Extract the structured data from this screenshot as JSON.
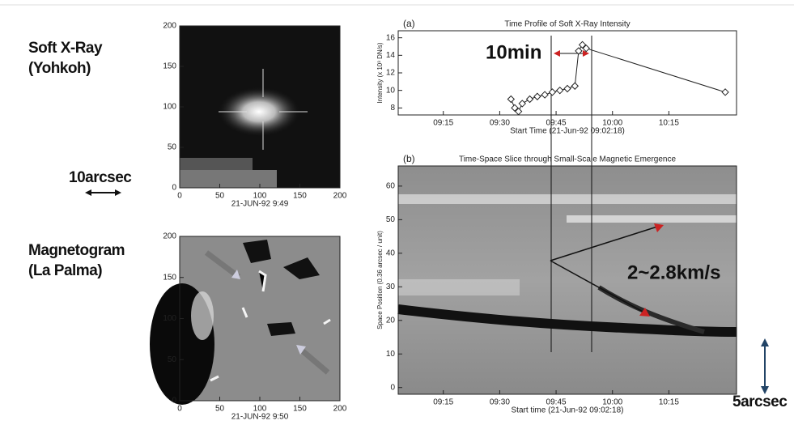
{
  "labels": {
    "soft_xray": "Soft X-Ray",
    "yohkoh": "(Yohkoh)",
    "scale_10": "10arcsec",
    "magnetogram": "Magnetogram",
    "la_palma": "(La Palma)",
    "min10": "10min",
    "speed": "2~2.8km/s",
    "scale_5": "5arcsec"
  },
  "chart_data": [
    {
      "type": "image",
      "xlabel": "21-JUN-92  9:49",
      "xlim": [
        0,
        200
      ],
      "ylim": [
        0,
        200
      ],
      "xticks": [
        0,
        50,
        100,
        150,
        200
      ],
      "yticks": [
        0,
        50,
        100,
        150,
        200
      ]
    },
    {
      "type": "image",
      "xlabel": "21-JUN-92  9:50",
      "xlim": [
        0,
        200
      ],
      "ylim": [
        0,
        200
      ],
      "xticks": [
        0,
        50,
        100,
        150,
        200
      ],
      "yticks": [
        0,
        50,
        100,
        150,
        200
      ]
    },
    {
      "type": "line",
      "panel": "(a)",
      "title": "Time Profile of Soft X-Ray Intensity",
      "xlabel": "Start Time (21-Jun-92 09:02:18)",
      "ylabel": "Intensity (x 10³ DN/s)",
      "x": [
        "09:33",
        "09:34",
        "09:35",
        "09:36",
        "09:38",
        "09:40",
        "09:42",
        "09:44",
        "09:46",
        "09:48",
        "09:50",
        "09:51",
        "09:52",
        "09:53",
        "10:30"
      ],
      "values": [
        9,
        8,
        7.6,
        8.5,
        9,
        9.3,
        9.5,
        9.8,
        10,
        10.2,
        10.5,
        14.5,
        15.2,
        14.8,
        9.8
      ],
      "color": "#222",
      "xlim": [
        "09:03",
        "10:33"
      ],
      "ylim": [
        7.2,
        16.8
      ],
      "xticks": [
        "09:15",
        "09:30",
        "09:45",
        "10:00",
        "10:15"
      ],
      "yticks": [
        8,
        10,
        12,
        14,
        16
      ]
    },
    {
      "type": "image",
      "panel": "(b)",
      "title": "Time-Space Slice through Small-Scale Magnetic Emergence",
      "xlabel": "Start time (21-Jun-92 09:02:18)",
      "ylabel": "Space Position (0.36 arcsec / unit)",
      "xlim": [
        "09:03",
        "10:33"
      ],
      "ylim": [
        -2,
        66
      ],
      "xticks": [
        "09:15",
        "09:30",
        "09:45",
        "10:00",
        "10:15"
      ],
      "yticks": [
        0,
        10,
        20,
        30,
        40,
        50,
        60
      ]
    }
  ]
}
